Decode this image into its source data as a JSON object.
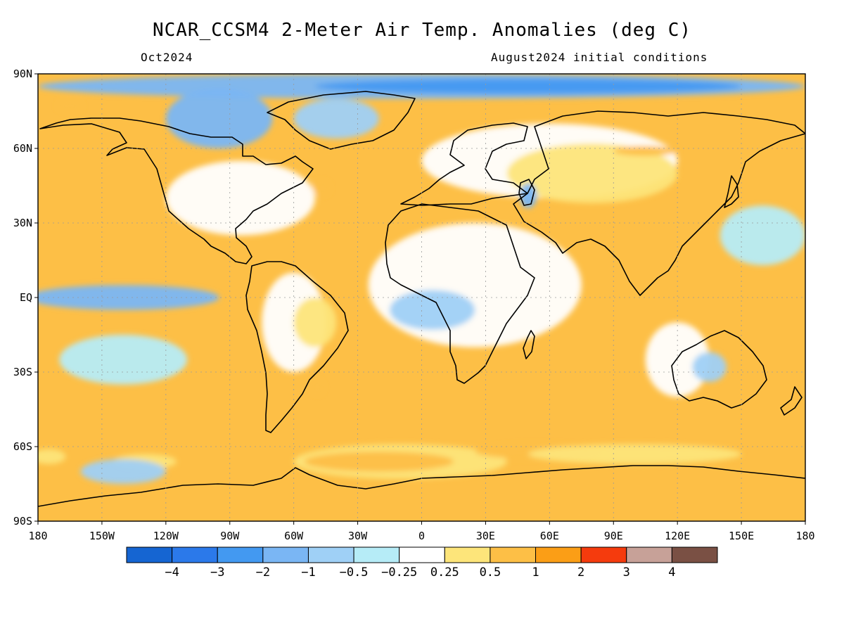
{
  "header": {
    "title": "NCAR_CCSM4 2-Meter Air Temp. Anomalies (deg C)",
    "month": "Oct2024",
    "init": "August2024 initial conditions"
  },
  "map": {
    "projection": "equirectangular",
    "lon_range": [
      -180,
      180
    ],
    "lat_range": [
      -90,
      90
    ],
    "lat_ticks": [
      {
        "lat": 90,
        "label": "90N"
      },
      {
        "lat": 60,
        "label": "60N"
      },
      {
        "lat": 30,
        "label": "30N"
      },
      {
        "lat": 0,
        "label": "EQ"
      },
      {
        "lat": -30,
        "label": "30S"
      },
      {
        "lat": -60,
        "label": "60S"
      },
      {
        "lat": -90,
        "label": "90S"
      }
    ],
    "lon_ticks": [
      {
        "lon": -180,
        "label": "180"
      },
      {
        "lon": -150,
        "label": "150W"
      },
      {
        "lon": -120,
        "label": "120W"
      },
      {
        "lon": -90,
        "label": "90W"
      },
      {
        "lon": -60,
        "label": "60W"
      },
      {
        "lon": -30,
        "label": "30W"
      },
      {
        "lon": 0,
        "label": "0"
      },
      {
        "lon": 30,
        "label": "30E"
      },
      {
        "lon": 60,
        "label": "60E"
      },
      {
        "lon": 90,
        "label": "90E"
      },
      {
        "lon": 120,
        "label": "120E"
      },
      {
        "lon": 150,
        "label": "150E"
      },
      {
        "lon": 180,
        "label": "180"
      }
    ],
    "regions": [
      {
        "bin": 6,
        "lon": 25,
        "lat": 5,
        "rx": 50,
        "ry": 25
      },
      {
        "bin": 6,
        "lon": 60,
        "lat": 55,
        "rx": 60,
        "ry": 15
      },
      {
        "bin": 7,
        "lon": 80,
        "lat": 50,
        "rx": 40,
        "ry": 12
      },
      {
        "bin": 6,
        "lon": -85,
        "lat": 40,
        "rx": 35,
        "ry": 15
      },
      {
        "bin": 6,
        "lon": -60,
        "lat": -10,
        "rx": 15,
        "ry": 20
      },
      {
        "bin": 7,
        "lon": -50,
        "lat": -10,
        "rx": 10,
        "ry": 10
      },
      {
        "bin": 7,
        "lon": -10,
        "lat": -66,
        "rx": 50,
        "ry": 7
      },
      {
        "bin": 8,
        "lon": -20,
        "lat": -66,
        "rx": 35,
        "ry": 4
      },
      {
        "bin": 8,
        "lon": 55,
        "lat": -62,
        "rx": 30,
        "ry": 3
      },
      {
        "bin": 7,
        "lon": 100,
        "lat": -63,
        "rx": 50,
        "ry": 4
      },
      {
        "bin": 8,
        "lon": -47,
        "lat": 44,
        "rx": 4,
        "ry": 3
      },
      {
        "bin": 8,
        "lon": -49,
        "lat": -36,
        "rx": 3,
        "ry": 3
      },
      {
        "bin": 8,
        "lon": 105,
        "lat": 59,
        "rx": 15,
        "ry": 2
      },
      {
        "bin": 6,
        "lon": 120,
        "lat": -25,
        "rx": 15,
        "ry": 15
      },
      {
        "bin": 7,
        "lon": -175,
        "lat": -64,
        "rx": 8,
        "ry": 3
      },
      {
        "bin": 7,
        "lon": -130,
        "lat": -66,
        "rx": 15,
        "ry": 3
      },
      {
        "bin": 3,
        "lon": 0,
        "lat": 85,
        "rx": 180,
        "ry": 5
      },
      {
        "bin": 2,
        "lon": 50,
        "lat": 85,
        "rx": 100,
        "ry": 3
      },
      {
        "bin": 3,
        "lon": -95,
        "lat": 72,
        "rx": 25,
        "ry": 12
      },
      {
        "bin": 4,
        "lon": -40,
        "lat": 72,
        "rx": 20,
        "ry": 8
      },
      {
        "bin": 3,
        "lon": -140,
        "lat": 0,
        "rx": 45,
        "ry": 5
      },
      {
        "bin": 4,
        "lon": 5,
        "lat": -5,
        "rx": 20,
        "ry": 8
      },
      {
        "bin": 3,
        "lon": 50,
        "lat": 41,
        "rx": 4,
        "ry": 5
      },
      {
        "bin": 4,
        "lon": -140,
        "lat": -70,
        "rx": 20,
        "ry": 5
      },
      {
        "bin": 5,
        "lon": -140,
        "lat": -25,
        "rx": 30,
        "ry": 10
      },
      {
        "bin": 5,
        "lon": 160,
        "lat": 25,
        "rx": 20,
        "ry": 12
      },
      {
        "bin": 4,
        "lon": 135,
        "lat": -28,
        "rx": 8,
        "ry": 6
      },
      {
        "bin": 8,
        "lon": -165,
        "lat": 77,
        "rx": 6,
        "ry": 2
      }
    ]
  },
  "colorbar": {
    "colors": [
      "#1565d2",
      "#2b79ea",
      "#4399f1",
      "#7ab6f4",
      "#9fd0f6",
      "#b6ecf7",
      "#ffffff",
      "#fde57a",
      "#fdbf46",
      "#fb9e16",
      "#f53b0d",
      "#c7a198",
      "#7a5044"
    ],
    "labels": [
      "-4",
      "-3",
      "-2",
      "-1",
      "-0.5",
      "-0.25",
      "0.25",
      "0.5",
      "1",
      "2",
      "3",
      "4"
    ]
  }
}
